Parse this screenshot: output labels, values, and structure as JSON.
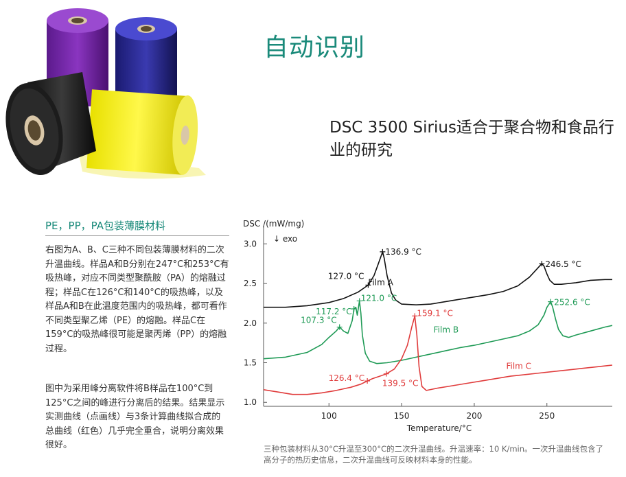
{
  "header": {
    "title": "自动识别",
    "subtitle": "DSC 3500 Sirius适合于聚合物和食品行业的研究"
  },
  "section": {
    "title": "PE，PP，PA包装薄膜材料",
    "paragraph_1": "右图为A、B、C三种不同包装薄膜材料的二次升温曲线。样品A和B分别在247°C和253°C有吸热峰，对应不同类型聚酰胺（PA）的熔融过程；样品C在126°C和140°C的吸热峰，以及样品A和B在此温度范围内的吸热峰，都可看作不同类型聚乙烯（PE）的熔融。样品C在159°C的吸热峰很可能是聚丙烯（PP）的熔融过程。",
    "paragraph_2": "图中为采用峰分离软件将B样品在100°C到125°C之间的峰进行分离后的结果。结果显示实测曲线（点画线）与3条计算曲线拟合成的总曲线（红色）几乎完全重合，说明分离效果很好。"
  },
  "caption": "三种包装材料从30°C升温至300°C的二次升温曲线。升温速率：10 K/min。一次升温曲线包含了高分子的热历史信息，二次升温曲线可反映材料本身的性能。",
  "colors": {
    "accent": "#1a8a7a",
    "film_a": "#111111",
    "film_b": "#1e9a55",
    "film_c": "#e03c3c"
  },
  "chart_data": {
    "type": "line",
    "ylabel": "DSC /(mW/mg)",
    "y_annotation": "↓ exo",
    "xlabel": "Temperature/°C",
    "xlim": [
      55,
      295
    ],
    "ylim": [
      0.95,
      3.15
    ],
    "x_ticks": [
      100,
      150,
      200,
      250
    ],
    "y_ticks": [
      1.0,
      1.5,
      2.0,
      2.5,
      3.0
    ],
    "y_tick_labels": [
      "1.0",
      "1.5",
      "2.0",
      "2.5",
      "3.0"
    ],
    "grid": false,
    "series": [
      {
        "name": "Film A",
        "color": "#111111",
        "label_at": [
          127,
          2.48
        ],
        "points": [
          [
            55,
            2.2
          ],
          [
            70,
            2.2
          ],
          [
            85,
            2.22
          ],
          [
            100,
            2.26
          ],
          [
            110,
            2.31
          ],
          [
            120,
            2.39
          ],
          [
            127,
            2.48
          ],
          [
            131,
            2.6
          ],
          [
            134,
            2.75
          ],
          [
            136.9,
            2.9
          ],
          [
            138,
            2.82
          ],
          [
            140,
            2.6
          ],
          [
            143,
            2.38
          ],
          [
            146,
            2.29
          ],
          [
            150,
            2.24
          ],
          [
            160,
            2.23
          ],
          [
            170,
            2.24
          ],
          [
            180,
            2.27
          ],
          [
            190,
            2.3
          ],
          [
            200,
            2.33
          ],
          [
            210,
            2.36
          ],
          [
            220,
            2.4
          ],
          [
            230,
            2.47
          ],
          [
            238,
            2.58
          ],
          [
            243,
            2.68
          ],
          [
            246.5,
            2.75
          ],
          [
            248,
            2.72
          ],
          [
            250,
            2.62
          ],
          [
            252,
            2.54
          ],
          [
            255,
            2.49
          ],
          [
            260,
            2.49
          ],
          [
            270,
            2.51
          ],
          [
            280,
            2.54
          ],
          [
            290,
            2.55
          ],
          [
            295,
            2.55
          ]
        ]
      },
      {
        "name": "Film B",
        "color": "#1e9a55",
        "label_at": [
          172,
          1.88
        ],
        "points": [
          [
            55,
            1.55
          ],
          [
            70,
            1.57
          ],
          [
            85,
            1.63
          ],
          [
            95,
            1.73
          ],
          [
            100,
            1.82
          ],
          [
            105,
            1.9
          ],
          [
            107.3,
            1.95
          ],
          [
            110,
            1.9
          ],
          [
            113,
            1.87
          ],
          [
            116,
            2.03
          ],
          [
            117.2,
            2.18
          ],
          [
            118.5,
            2.2
          ],
          [
            119.5,
            2.1
          ],
          [
            121,
            2.28
          ],
          [
            122,
            2.12
          ],
          [
            123,
            1.85
          ],
          [
            125,
            1.62
          ],
          [
            128,
            1.52
          ],
          [
            133,
            1.49
          ],
          [
            140,
            1.5
          ],
          [
            150,
            1.53
          ],
          [
            160,
            1.57
          ],
          [
            170,
            1.61
          ],
          [
            180,
            1.65
          ],
          [
            190,
            1.69
          ],
          [
            200,
            1.72
          ],
          [
            210,
            1.76
          ],
          [
            220,
            1.8
          ],
          [
            230,
            1.84
          ],
          [
            238,
            1.9
          ],
          [
            244,
            1.98
          ],
          [
            248,
            2.1
          ],
          [
            250,
            2.2
          ],
          [
            252.6,
            2.27
          ],
          [
            254,
            2.2
          ],
          [
            256,
            2.05
          ],
          [
            258,
            1.92
          ],
          [
            261,
            1.84
          ],
          [
            265,
            1.82
          ],
          [
            270,
            1.85
          ],
          [
            280,
            1.9
          ],
          [
            290,
            1.95
          ],
          [
            295,
            1.97
          ]
        ]
      },
      {
        "name": "Film C",
        "color": "#e03c3c",
        "label_at": [
          222,
          1.42
        ],
        "points": [
          [
            55,
            1.16
          ],
          [
            65,
            1.13
          ],
          [
            75,
            1.1
          ],
          [
            85,
            1.1
          ],
          [
            95,
            1.12
          ],
          [
            105,
            1.15
          ],
          [
            115,
            1.19
          ],
          [
            122,
            1.23
          ],
          [
            126.4,
            1.27
          ],
          [
            130,
            1.3
          ],
          [
            135,
            1.33
          ],
          [
            139.5,
            1.36
          ],
          [
            145,
            1.42
          ],
          [
            150,
            1.55
          ],
          [
            154,
            1.72
          ],
          [
            157,
            1.95
          ],
          [
            159.1,
            2.09
          ],
          [
            160.5,
            1.85
          ],
          [
            162,
            1.45
          ],
          [
            164,
            1.2
          ],
          [
            167,
            1.15
          ],
          [
            175,
            1.18
          ],
          [
            185,
            1.21
          ],
          [
            195,
            1.24
          ],
          [
            205,
            1.27
          ],
          [
            215,
            1.3
          ],
          [
            225,
            1.33
          ],
          [
            235,
            1.35
          ],
          [
            245,
            1.37
          ],
          [
            255,
            1.39
          ],
          [
            265,
            1.41
          ],
          [
            275,
            1.43
          ],
          [
            285,
            1.45
          ],
          [
            295,
            1.47
          ]
        ]
      }
    ],
    "annotations": [
      {
        "text": "127.0 °C",
        "x": 127.0,
        "y": 2.48,
        "series": 0,
        "anchor": "end",
        "dx": -6,
        "dy": -9
      },
      {
        "text": "136.9 °C",
        "x": 136.9,
        "y": 2.9,
        "series": 0,
        "anchor": "start",
        "dx": 4,
        "dy": 4
      },
      {
        "text": "246.5 °C",
        "x": 246.5,
        "y": 2.75,
        "series": 0,
        "anchor": "start",
        "dx": 5,
        "dy": 5
      },
      {
        "text": "107.3 °C",
        "x": 107.3,
        "y": 1.95,
        "series": 1,
        "anchor": "end",
        "dx": -4,
        "dy": -6
      },
      {
        "text": "117.2 °C",
        "x": 117.2,
        "y": 2.18,
        "series": 1,
        "anchor": "end",
        "dx": -3,
        "dy": 8
      },
      {
        "text": "121.0 °C",
        "x": 121.0,
        "y": 2.28,
        "series": 1,
        "anchor": "start",
        "dx": 2,
        "dy": 0
      },
      {
        "text": "252.6 °C",
        "x": 252.6,
        "y": 2.27,
        "series": 1,
        "anchor": "start",
        "dx": 5,
        "dy": 5
      },
      {
        "text": "126.4 °C",
        "x": 126.4,
        "y": 1.27,
        "series": 2,
        "anchor": "end",
        "dx": -4,
        "dy": 0
      },
      {
        "text": "139.5 °C",
        "x": 139.5,
        "y": 1.36,
        "series": 2,
        "anchor": "start",
        "dx": -6,
        "dy": 18
      },
      {
        "text": "159.1 °C",
        "x": 159.1,
        "y": 2.09,
        "series": 2,
        "anchor": "start",
        "dx": 3,
        "dy": 0
      }
    ]
  }
}
